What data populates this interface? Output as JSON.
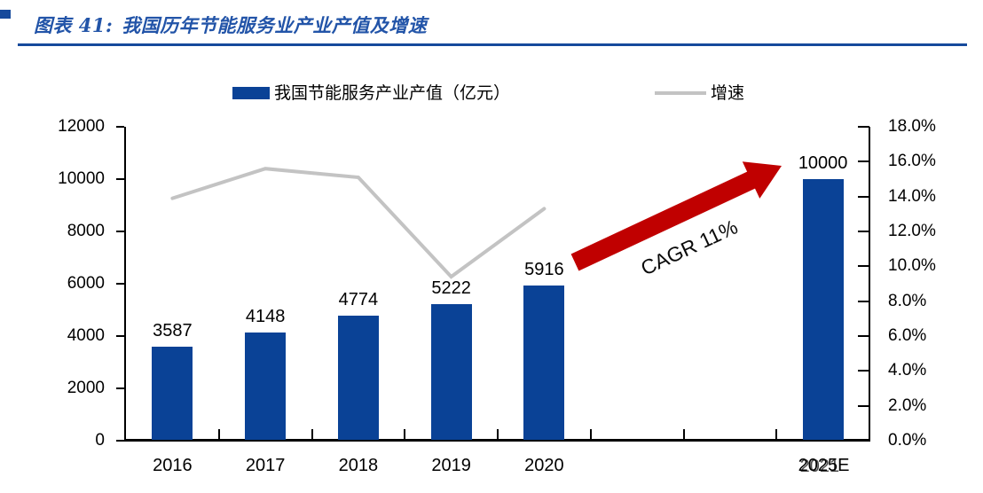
{
  "figure": {
    "label": "图表 41:",
    "title": "我国历年节能服务业产业产值及增速",
    "title_color": "#2254a8",
    "divider_color": "#164a9c"
  },
  "legend": {
    "bar": {
      "label": "我国节能服务产业产值（亿元）",
      "color": "#0a4296"
    },
    "line": {
      "label": "增速",
      "color": "#c3c3c3"
    }
  },
  "annotation": {
    "text": "CAGR 11%",
    "arrow_color": "#c00000"
  },
  "chart_data": {
    "type": "bar+line",
    "categories": [
      "2016",
      "2017",
      "2018",
      "2019",
      "2020",
      "2025E"
    ],
    "category_slots": [
      0,
      1,
      2,
      3,
      4,
      7
    ],
    "total_slots": 8,
    "series": [
      {
        "name": "我国节能服务产业产值（亿元）",
        "type": "bar",
        "axis": "left",
        "color": "#0a4296",
        "values": [
          3587,
          4148,
          4774,
          5222,
          5916,
          10000
        ],
        "value_labels": [
          "3587",
          "4148",
          "4774",
          "5222",
          "5916",
          "10000"
        ]
      },
      {
        "name": "增速",
        "type": "line",
        "axis": "right",
        "color": "#c3c3c3",
        "values_pct": [
          13.9,
          15.6,
          15.1,
          9.4,
          13.3,
          null
        ]
      }
    ],
    "left_axis": {
      "min": 0,
      "max": 12000,
      "step": 2000,
      "labels": [
        "12000",
        "10000",
        "8000",
        "6000",
        "4000",
        "2000",
        "0"
      ]
    },
    "right_axis": {
      "min": 0,
      "max": 18,
      "step": 2,
      "unit": "%",
      "labels": [
        "18.0%",
        "16.0%",
        "14.0%",
        "12.0%",
        "10.0%",
        "8.0%",
        "6.0%",
        "4.0%",
        "2.0%",
        "0.0%"
      ]
    },
    "x_axis": {
      "labels": [
        "2016",
        "2017",
        "2018",
        "2019",
        "2020",
        "2025E"
      ],
      "overlap_ghost_label": "2021"
    },
    "grid": "off",
    "legend_position": "top"
  }
}
